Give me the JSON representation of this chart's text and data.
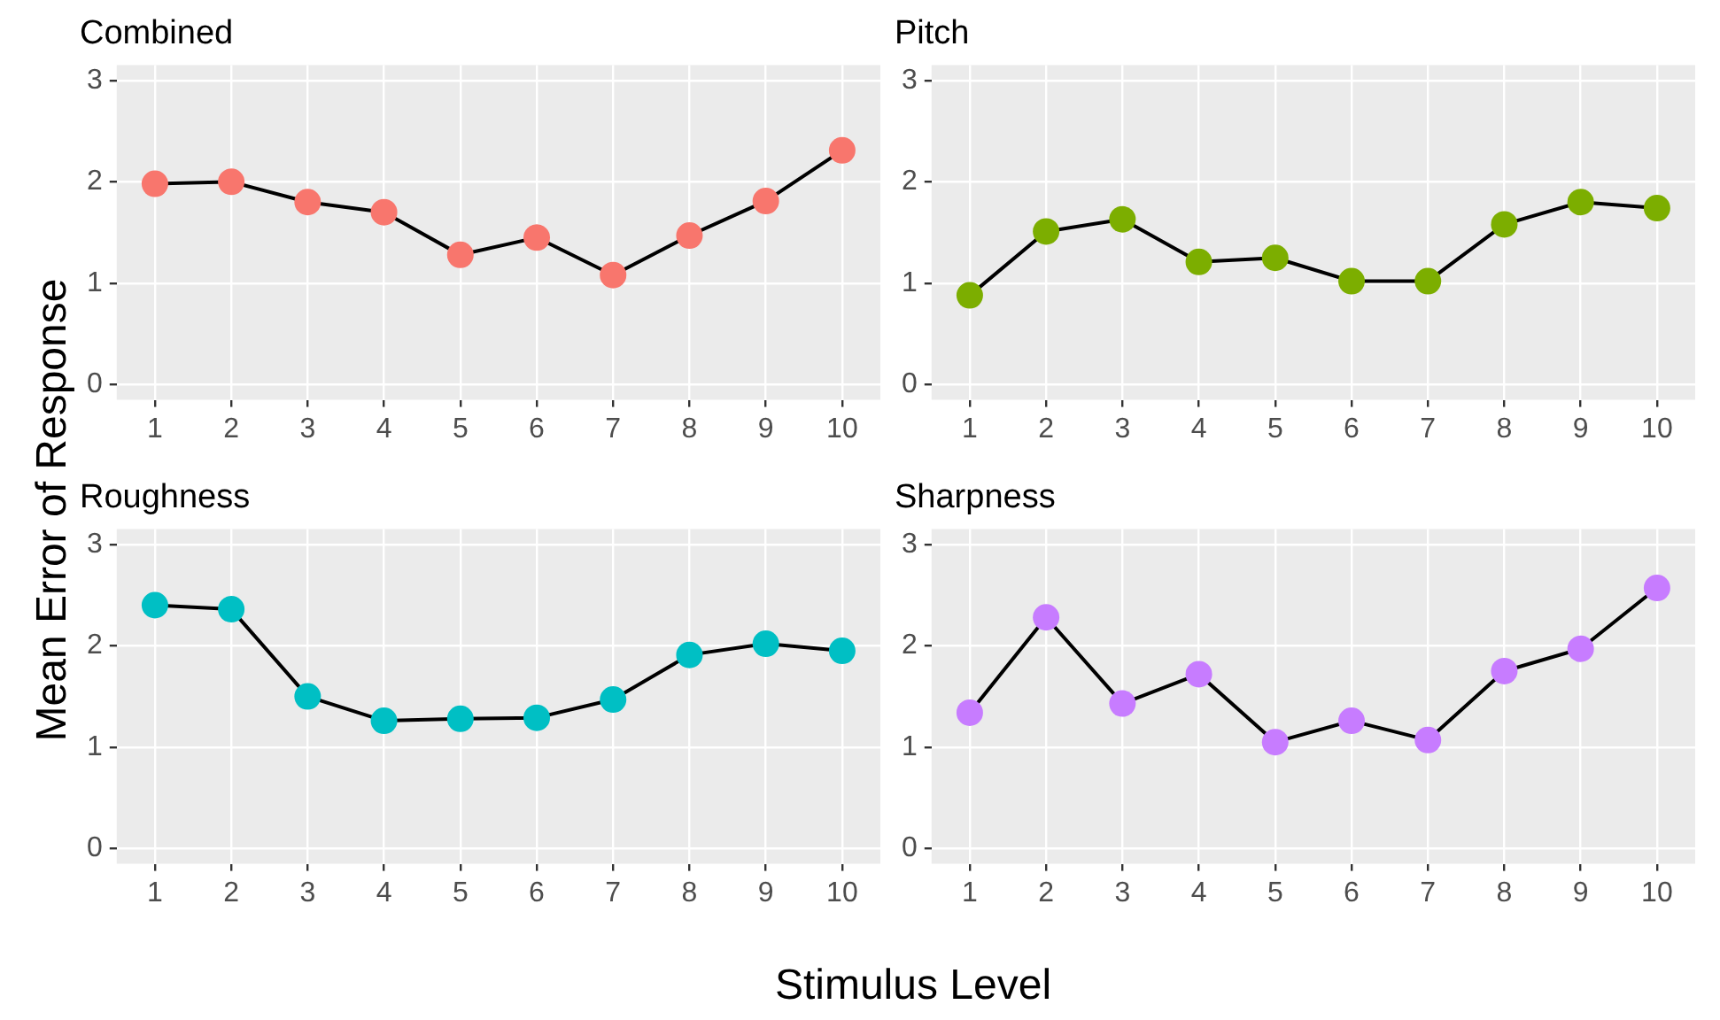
{
  "chart_data": [
    {
      "type": "line",
      "title": "Combined",
      "xlabel": "Stimulus Level",
      "ylabel": "Mean Error of Response",
      "categories": [
        "1",
        "2",
        "3",
        "4",
        "5",
        "6",
        "7",
        "8",
        "9",
        "10"
      ],
      "series": [
        {
          "color": "#f8766d",
          "values": [
            1.98,
            2.0,
            1.8,
            1.7,
            1.28,
            1.45,
            1.08,
            1.47,
            1.81,
            2.31
          ]
        }
      ],
      "ylim": [
        -0.15,
        3.15
      ],
      "yticks": [
        0,
        1,
        2,
        3
      ],
      "grid": true,
      "marker": "circle"
    },
    {
      "type": "line",
      "title": "Pitch",
      "categories": [
        "1",
        "2",
        "3",
        "4",
        "5",
        "6",
        "7",
        "8",
        "9",
        "10"
      ],
      "series": [
        {
          "color": "#7cae00",
          "values": [
            0.88,
            1.51,
            1.63,
            1.21,
            1.25,
            1.02,
            1.02,
            1.58,
            1.8,
            1.74
          ]
        }
      ],
      "ylim": [
        -0.15,
        3.15
      ],
      "yticks": [
        0,
        1,
        2,
        3
      ],
      "grid": true,
      "marker": "circle"
    },
    {
      "type": "line",
      "title": "Roughness",
      "categories": [
        "1",
        "2",
        "3",
        "4",
        "5",
        "6",
        "7",
        "8",
        "9",
        "10"
      ],
      "series": [
        {
          "color": "#00bfc4",
          "values": [
            2.4,
            2.36,
            1.5,
            1.26,
            1.28,
            1.29,
            1.47,
            1.91,
            2.02,
            1.95
          ]
        }
      ],
      "ylim": [
        -0.15,
        3.15
      ],
      "yticks": [
        0,
        1,
        2,
        3
      ],
      "grid": true,
      "marker": "circle"
    },
    {
      "type": "line",
      "title": "Sharpness",
      "categories": [
        "1",
        "2",
        "3",
        "4",
        "5",
        "6",
        "7",
        "8",
        "9",
        "10"
      ],
      "series": [
        {
          "color": "#c77cff",
          "values": [
            1.34,
            2.28,
            1.43,
            1.72,
            1.05,
            1.26,
            1.07,
            1.75,
            1.97,
            2.57
          ]
        }
      ],
      "ylim": [
        -0.15,
        3.15
      ],
      "yticks": [
        0,
        1,
        2,
        3
      ],
      "grid": true,
      "marker": "circle"
    }
  ]
}
